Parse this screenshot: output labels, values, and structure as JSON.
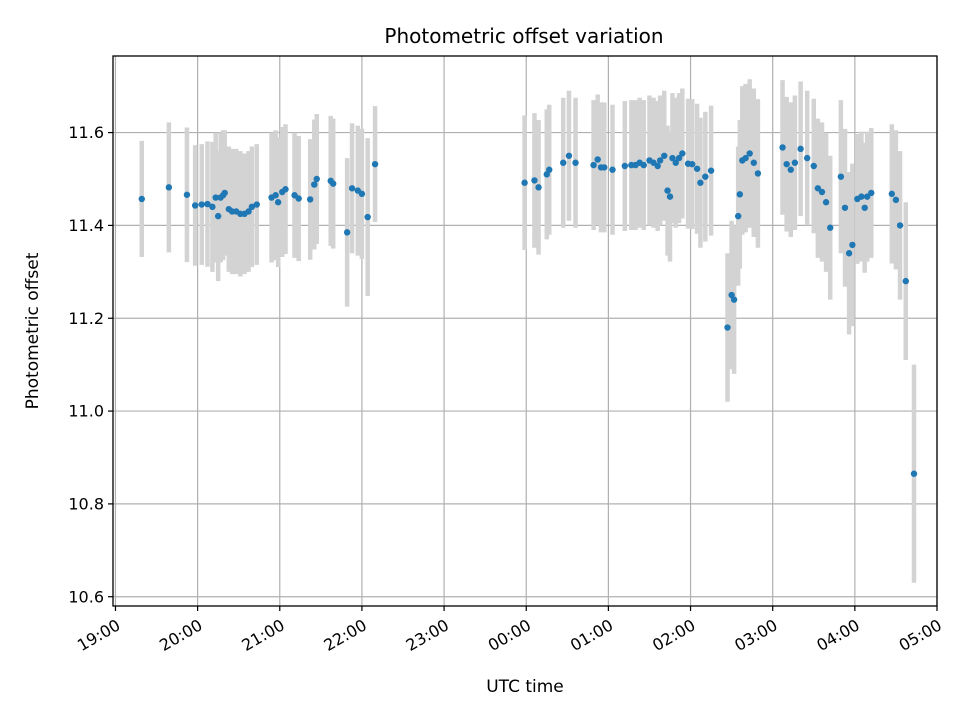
{
  "chart_data": {
    "type": "scatter",
    "title": "Photometric offset variation",
    "xlabel": "UTC time",
    "ylabel": "Photometric offset",
    "x_unit": "hour",
    "xlim": [
      18.97,
      29.0
    ],
    "ylim": [
      10.58,
      11.765
    ],
    "x_ticks": [
      {
        "v": 19,
        "label": "19:00"
      },
      {
        "v": 20,
        "label": "20:00"
      },
      {
        "v": 21,
        "label": "21:00"
      },
      {
        "v": 22,
        "label": "22:00"
      },
      {
        "v": 23,
        "label": "23:00"
      },
      {
        "v": 24,
        "label": "00:00"
      },
      {
        "v": 25,
        "label": "01:00"
      },
      {
        "v": 26,
        "label": "02:00"
      },
      {
        "v": 27,
        "label": "03:00"
      },
      {
        "v": 28,
        "label": "04:00"
      },
      {
        "v": 29,
        "label": "05:00"
      }
    ],
    "y_ticks": [
      {
        "v": 10.6,
        "label": "10.6"
      },
      {
        "v": 10.8,
        "label": "10.8"
      },
      {
        "v": 11.0,
        "label": "11.0"
      },
      {
        "v": 11.2,
        "label": "11.2"
      },
      {
        "v": 11.4,
        "label": "11.4"
      },
      {
        "v": 11.6,
        "label": "11.6"
      }
    ],
    "grid": true,
    "colors": {
      "point": "#1f77b4",
      "error_bar": "#d3d3d3",
      "grid": "#b0b0b0"
    },
    "series": [
      {
        "points": [
          [
            19.32,
            11.457,
            0.125
          ],
          [
            19.65,
            11.482,
            0.14
          ],
          [
            19.87,
            11.466,
            0.145
          ],
          [
            19.97,
            11.443,
            0.13
          ],
          [
            20.05,
            11.445,
            0.13
          ],
          [
            20.12,
            11.446,
            0.135
          ],
          [
            20.18,
            11.44,
            0.14
          ],
          [
            20.22,
            11.46,
            0.14
          ],
          [
            20.25,
            11.42,
            0.14
          ],
          [
            20.28,
            11.46,
            0.14
          ],
          [
            20.31,
            11.465,
            0.14
          ],
          [
            20.33,
            11.47,
            0.135
          ],
          [
            20.38,
            11.435,
            0.135
          ],
          [
            20.42,
            11.43,
            0.135
          ],
          [
            20.47,
            11.43,
            0.135
          ],
          [
            20.52,
            11.425,
            0.135
          ],
          [
            20.57,
            11.425,
            0.13
          ],
          [
            20.62,
            11.43,
            0.13
          ],
          [
            20.66,
            11.44,
            0.13
          ],
          [
            20.72,
            11.445,
            0.13
          ],
          [
            20.9,
            11.46,
            0.14
          ],
          [
            20.95,
            11.465,
            0.14
          ],
          [
            20.98,
            11.45,
            0.14
          ],
          [
            21.03,
            11.472,
            0.14
          ],
          [
            21.07,
            11.478,
            0.14
          ],
          [
            21.18,
            11.465,
            0.135
          ],
          [
            21.23,
            11.458,
            0.135
          ],
          [
            21.37,
            11.456,
            0.13
          ],
          [
            21.42,
            11.488,
            0.14
          ],
          [
            21.45,
            11.5,
            0.14
          ],
          [
            21.62,
            11.496,
            0.14
          ],
          [
            21.65,
            11.49,
            0.14
          ],
          [
            21.82,
            11.385,
            0.16
          ],
          [
            21.88,
            11.48,
            0.14
          ],
          [
            21.95,
            11.475,
            0.14
          ],
          [
            22.0,
            11.468,
            0.14
          ],
          [
            22.07,
            11.418,
            0.17
          ],
          [
            22.16,
            11.532,
            0.125
          ],
          [
            23.98,
            11.492,
            0.145
          ],
          [
            24.1,
            11.497,
            0.145
          ],
          [
            24.15,
            11.482,
            0.145
          ],
          [
            24.25,
            11.51,
            0.14
          ],
          [
            24.28,
            11.52,
            0.14
          ],
          [
            24.45,
            11.535,
            0.14
          ],
          [
            24.52,
            11.55,
            0.14
          ],
          [
            24.6,
            11.535,
            0.14
          ],
          [
            24.82,
            11.53,
            0.14
          ],
          [
            24.87,
            11.542,
            0.14
          ],
          [
            24.91,
            11.525,
            0.14
          ],
          [
            24.95,
            11.525,
            0.14
          ],
          [
            25.05,
            11.52,
            0.14
          ],
          [
            25.2,
            11.528,
            0.14
          ],
          [
            25.28,
            11.53,
            0.14
          ],
          [
            25.33,
            11.53,
            0.14
          ],
          [
            25.38,
            11.535,
            0.14
          ],
          [
            25.43,
            11.53,
            0.14
          ],
          [
            25.5,
            11.54,
            0.14
          ],
          [
            25.55,
            11.535,
            0.14
          ],
          [
            25.6,
            11.528,
            0.14
          ],
          [
            25.63,
            11.54,
            0.14
          ],
          [
            25.68,
            11.55,
            0.14
          ],
          [
            25.72,
            11.475,
            0.14
          ],
          [
            25.75,
            11.462,
            0.14
          ],
          [
            25.78,
            11.545,
            0.14
          ],
          [
            25.82,
            11.535,
            0.14
          ],
          [
            25.86,
            11.545,
            0.14
          ],
          [
            25.9,
            11.555,
            0.14
          ],
          [
            25.97,
            11.533,
            0.14
          ],
          [
            26.02,
            11.532,
            0.14
          ],
          [
            26.08,
            11.522,
            0.14
          ],
          [
            26.12,
            11.492,
            0.14
          ],
          [
            26.18,
            11.505,
            0.14
          ],
          [
            26.25,
            11.518,
            0.14
          ],
          [
            26.45,
            11.18,
            0.16
          ],
          [
            26.5,
            11.25,
            0.16
          ],
          [
            26.53,
            11.24,
            0.16
          ],
          [
            26.58,
            11.42,
            0.15
          ],
          [
            26.6,
            11.467,
            0.16
          ],
          [
            26.63,
            11.54,
            0.16
          ],
          [
            26.67,
            11.545,
            0.16
          ],
          [
            26.72,
            11.555,
            0.16
          ],
          [
            26.77,
            11.535,
            0.16
          ],
          [
            26.82,
            11.512,
            0.16
          ],
          [
            27.12,
            11.568,
            0.145
          ],
          [
            27.17,
            11.532,
            0.145
          ],
          [
            27.22,
            11.52,
            0.145
          ],
          [
            27.27,
            11.535,
            0.145
          ],
          [
            27.34,
            11.565,
            0.145
          ],
          [
            27.42,
            11.545,
            0.145
          ],
          [
            27.5,
            11.528,
            0.145
          ],
          [
            27.55,
            11.48,
            0.15
          ],
          [
            27.6,
            11.472,
            0.15
          ],
          [
            27.65,
            11.45,
            0.15
          ],
          [
            27.7,
            11.395,
            0.155
          ],
          [
            27.83,
            11.505,
            0.165
          ],
          [
            27.88,
            11.438,
            0.17
          ],
          [
            27.93,
            11.34,
            0.175
          ],
          [
            27.97,
            11.358,
            0.175
          ],
          [
            28.03,
            11.457,
            0.14
          ],
          [
            28.08,
            11.462,
            0.14
          ],
          [
            28.12,
            11.438,
            0.14
          ],
          [
            28.15,
            11.462,
            0.14
          ],
          [
            28.2,
            11.47,
            0.14
          ],
          [
            28.45,
            11.468,
            0.15
          ],
          [
            28.5,
            11.455,
            0.15
          ],
          [
            28.55,
            11.4,
            0.16
          ],
          [
            28.62,
            11.28,
            0.17
          ],
          [
            28.72,
            10.865,
            0.235
          ]
        ]
      }
    ]
  }
}
